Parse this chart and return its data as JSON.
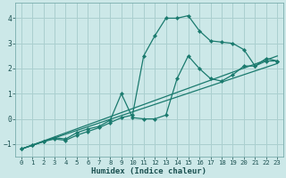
{
  "xlabel": "Humidex (Indice chaleur)",
  "xlim": [
    -0.5,
    23.5
  ],
  "ylim": [
    -1.5,
    4.6
  ],
  "xticks": [
    0,
    1,
    2,
    3,
    4,
    5,
    6,
    7,
    8,
    9,
    10,
    11,
    12,
    13,
    14,
    15,
    16,
    17,
    18,
    19,
    20,
    21,
    22,
    23
  ],
  "yticks": [
    -1,
    0,
    1,
    2,
    3,
    4
  ],
  "background_color": "#cce8e8",
  "grid_color": "#aacfcf",
  "line_color": "#1a7a6e",
  "series": [
    {
      "x": [
        0,
        1,
        2,
        3,
        4,
        5,
        6,
        7,
        8,
        9,
        10,
        11,
        12,
        13,
        14,
        15,
        16,
        17,
        18,
        19,
        20,
        21,
        22,
        23
      ],
      "y": [
        -1.2,
        -1.05,
        -0.9,
        -0.8,
        -0.85,
        -0.65,
        -0.5,
        -0.35,
        -0.15,
        0.05,
        0.15,
        2.5,
        3.3,
        4.0,
        4.0,
        4.1,
        3.5,
        3.1,
        3.05,
        3.0,
        2.75,
        2.1,
        2.4,
        2.3
      ],
      "has_markers": true
    },
    {
      "x": [
        0,
        1,
        2,
        3,
        4,
        5,
        6,
        7,
        8,
        9,
        10,
        11,
        12,
        13,
        14,
        15,
        16,
        17,
        18,
        19,
        20,
        21,
        22,
        23
      ],
      "y": [
        -1.2,
        -1.05,
        -0.9,
        -0.75,
        -0.8,
        -0.55,
        -0.4,
        -0.3,
        -0.05,
        1.0,
        0.05,
        0.0,
        0.0,
        0.15,
        1.6,
        2.5,
        2.0,
        1.6,
        1.5,
        1.75,
        2.1,
        2.1,
        2.3,
        2.3
      ],
      "has_markers": true
    },
    {
      "x": [
        0,
        23
      ],
      "y": [
        -1.2,
        2.2
      ],
      "has_markers": false
    },
    {
      "x": [
        0,
        23
      ],
      "y": [
        -1.2,
        2.5
      ],
      "has_markers": false
    }
  ]
}
